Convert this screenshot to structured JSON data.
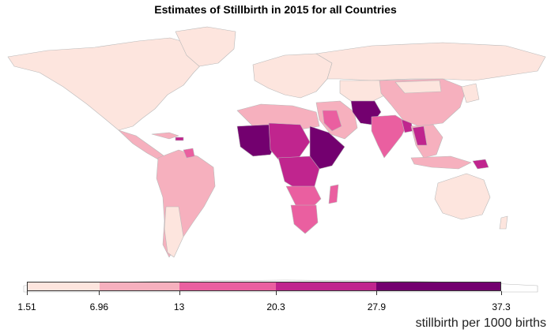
{
  "title": "Estimates of Stillbirth in 2015 for all Countries",
  "legend": {
    "unit_label": "stillbirth per 1000 births",
    "breaks": [
      "1.51",
      "6.96",
      "13",
      "20.3",
      "27.9",
      "37.3"
    ],
    "break_values": [
      1.51,
      6.96,
      13,
      20.3,
      27.9,
      37.3
    ],
    "colors": [
      "#fde5de",
      "#f6b0be",
      "#ea5fa0",
      "#c0258e",
      "#73006f"
    ]
  },
  "colors": {
    "ocean": "#ffffff",
    "border": "#b9b9b9",
    "low": "#fde5de",
    "mid_low": "#f6b0be",
    "mid": "#ea5fa0",
    "mid_high": "#c0258e",
    "high": "#73006f"
  }
}
